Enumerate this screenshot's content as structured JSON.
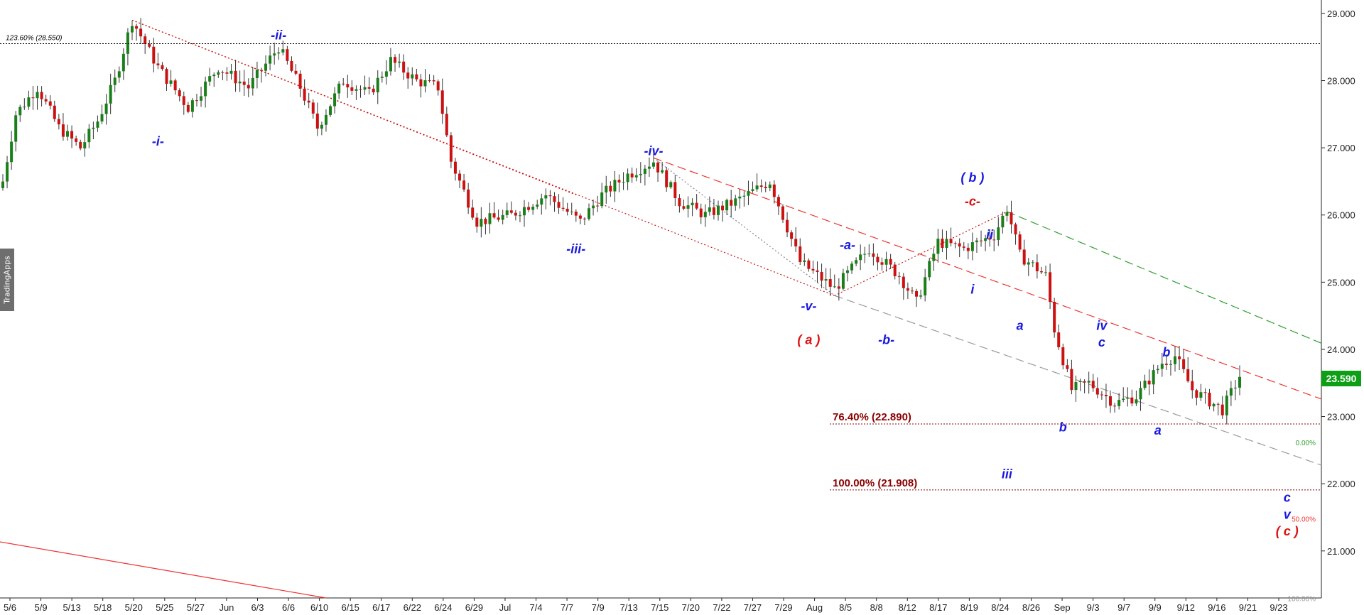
{
  "app": {
    "brand_tab": "TradingApps"
  },
  "current_price": "23.590",
  "colors": {
    "up": "#1a7f1a",
    "down": "#cc1111",
    "wave_blue": "#1a1adf",
    "wave_red": "#dd1111",
    "fib_dark": "#8b0000",
    "green_line": "#2e9e2e",
    "red_line": "#ee3333",
    "gray_line": "#9a9a9a",
    "badge": "#0d9f16"
  },
  "chart_data": {
    "type": "candlestick",
    "title": "",
    "xlabel": "",
    "ylabel": "",
    "ylim": [
      20.3,
      29.2
    ],
    "y_ticks": [
      "29.000",
      "28.000",
      "27.000",
      "26.000",
      "25.000",
      "24.000",
      "23.000",
      "22.000",
      "21.000"
    ],
    "y_tick_values": [
      29,
      28,
      27,
      26,
      25,
      24,
      23,
      22,
      21
    ],
    "x_ticks": [
      "5/6",
      "5/9",
      "5/13",
      "5/18",
      "5/20",
      "5/25",
      "5/27",
      "Jun",
      "6/3",
      "6/6",
      "6/10",
      "6/15",
      "6/17",
      "6/22",
      "6/24",
      "6/29",
      "Jul",
      "7/4",
      "7/7",
      "7/9",
      "7/13",
      "7/15",
      "7/20",
      "7/22",
      "7/27",
      "7/29",
      "Aug",
      "8/5",
      "8/8",
      "8/12",
      "8/17",
      "8/19",
      "8/24",
      "8/26",
      "Sep",
      "9/3",
      "9/7",
      "9/9",
      "9/12",
      "9/16",
      "9/21",
      "9/23"
    ],
    "anchors": [
      [
        0,
        26.5
      ],
      [
        3,
        27.5
      ],
      [
        8,
        27.9
      ],
      [
        13,
        27.3
      ],
      [
        18,
        27.0
      ],
      [
        22,
        27.4
      ],
      [
        26,
        28.0
      ],
      [
        30,
        28.9
      ],
      [
        36,
        28.2
      ],
      [
        43,
        27.6
      ],
      [
        50,
        28.2
      ],
      [
        57,
        27.9
      ],
      [
        64,
        28.5
      ],
      [
        69,
        27.9
      ],
      [
        73,
        27.3
      ],
      [
        79,
        28.0
      ],
      [
        85,
        27.8
      ],
      [
        90,
        28.3
      ],
      [
        96,
        28.0
      ],
      [
        101,
        27.9
      ],
      [
        104,
        26.8
      ],
      [
        110,
        25.9
      ],
      [
        118,
        26.0
      ],
      [
        126,
        26.3
      ],
      [
        134,
        25.9
      ],
      [
        139,
        26.3
      ],
      [
        145,
        26.6
      ],
      [
        151,
        26.8
      ],
      [
        157,
        26.2
      ],
      [
        163,
        26.0
      ],
      [
        170,
        26.2
      ],
      [
        178,
        26.5
      ],
      [
        185,
        25.3
      ],
      [
        193,
        24.9
      ],
      [
        201,
        25.5
      ],
      [
        208,
        25.1
      ],
      [
        212,
        24.7
      ],
      [
        217,
        25.6
      ],
      [
        223,
        25.5
      ],
      [
        230,
        25.7
      ],
      [
        233,
        26.1
      ],
      [
        236,
        25.4
      ],
      [
        242,
        25.1
      ],
      [
        244,
        24.3
      ],
      [
        248,
        23.4
      ],
      [
        252,
        23.5
      ],
      [
        258,
        23.2
      ],
      [
        263,
        23.3
      ],
      [
        269,
        23.8
      ],
      [
        272,
        23.9
      ],
      [
        276,
        23.4
      ],
      [
        283,
        23.1
      ],
      [
        287,
        23.6
      ]
    ],
    "wave_labels": [
      {
        "text": "-ii-",
        "i": 64,
        "p": 28.57,
        "pos": "above",
        "color": "blue"
      },
      {
        "text": "-i-",
        "i": 36,
        "p": 27.2,
        "pos": "below",
        "color": "blue"
      },
      {
        "text": "-iii-",
        "i": 133,
        "p": 25.6,
        "pos": "below",
        "color": "blue"
      },
      {
        "text": "-iv-",
        "i": 151,
        "p": 26.85,
        "pos": "above",
        "color": "blue"
      },
      {
        "text": "-v-",
        "i": 187,
        "p": 24.75,
        "pos": "below",
        "color": "blue"
      },
      {
        "text": "( a )",
        "i": 187,
        "p": 24.25,
        "pos": "below",
        "color": "red"
      },
      {
        "text": "-a-",
        "i": 196,
        "p": 25.45,
        "pos": "above",
        "color": "blue"
      },
      {
        "text": "-b-",
        "i": 205,
        "p": 24.25,
        "pos": "below",
        "color": "blue"
      },
      {
        "text": "( b )",
        "i": 225,
        "p": 26.45,
        "pos": "above",
        "color": "blue"
      },
      {
        "text": "-c-",
        "i": 225,
        "p": 26.1,
        "pos": "above",
        "color": "red"
      },
      {
        "text": "ii",
        "i": 229,
        "p": 25.6,
        "pos": "above",
        "color": "blue"
      },
      {
        "text": "i",
        "i": 225,
        "p": 25.0,
        "pos": "below",
        "color": "blue"
      },
      {
        "text": "a",
        "i": 236,
        "p": 24.25,
        "pos": "above",
        "color": "blue"
      },
      {
        "text": "iii",
        "i": 233,
        "p": 22.25,
        "pos": "below",
        "color": "blue"
      },
      {
        "text": "b",
        "i": 246,
        "p": 22.95,
        "pos": "below",
        "color": "blue"
      },
      {
        "text": "iv",
        "i": 255,
        "p": 24.25,
        "pos": "above",
        "color": "blue"
      },
      {
        "text": "c",
        "i": 255,
        "p": 24.0,
        "pos": "above",
        "color": "blue"
      },
      {
        "text": "b",
        "i": 270,
        "p": 23.85,
        "pos": "above",
        "color": "blue"
      },
      {
        "text": "a",
        "i": 268,
        "p": 22.9,
        "pos": "below",
        "color": "blue"
      },
      {
        "text": "c",
        "i": 298,
        "p": 21.9,
        "pos": "below",
        "color": "blue"
      },
      {
        "text": "v",
        "i": 298,
        "p": 21.65,
        "pos": "below",
        "color": "blue"
      },
      {
        "text": "( c )",
        "i": 298,
        "p": 21.4,
        "pos": "below",
        "color": "red"
      }
    ],
    "fib_lines": [
      {
        "label": "123.60% (28.550)",
        "price": 28.55,
        "color": "#000000",
        "text_color": "#000000"
      },
      {
        "label": "76.40% (22.890)",
        "price": 22.89,
        "color": "#8b0000",
        "text_color": "#8b0000"
      },
      {
        "label": "100.00% (21.908)",
        "price": 21.908,
        "color": "#8b0000",
        "text_color": "#8b0000"
      }
    ],
    "channel_pcts": [
      {
        "label": "0.00%",
        "color": "#2e9e2e"
      },
      {
        "label": "50.00%",
        "color": "#ee3333"
      },
      {
        "label": "100.00%",
        "color": "#9a9a9a"
      }
    ]
  }
}
